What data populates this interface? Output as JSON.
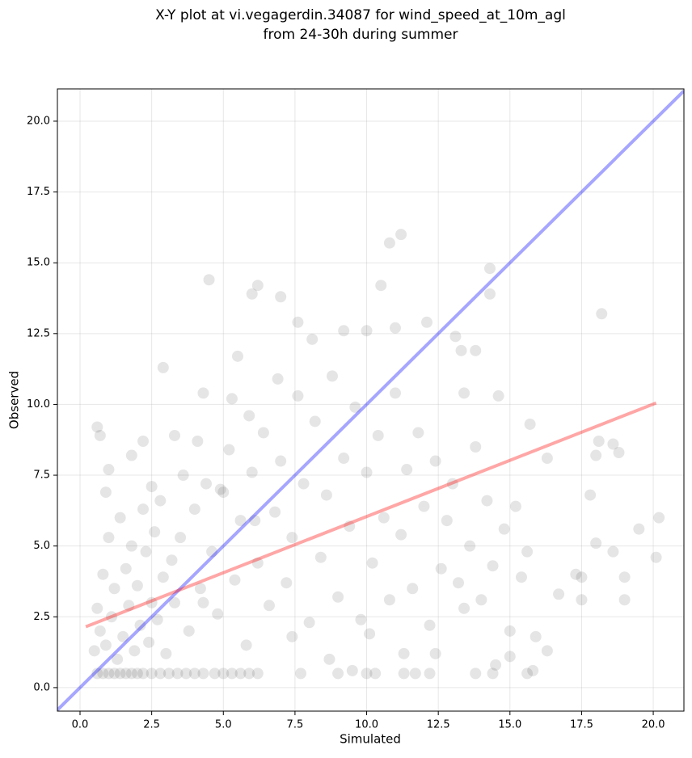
{
  "chart_data": {
    "type": "scatter",
    "title": [
      "X-Y plot at vi.vegagerdin.34087 for wind_speed_at_10m_agl",
      "from 24-30h during summer"
    ],
    "xlabel": "Simulated",
    "ylabel": "Observed",
    "xlim": [
      -0.79,
      21.07
    ],
    "ylim": [
      -0.83,
      21.14
    ],
    "xticks": [
      {
        "value": 0,
        "label": "0.0"
      },
      2.5,
      {
        "value": 5,
        "label": "5.0"
      },
      7.5,
      {
        "value": 10,
        "label": "10.0"
      },
      12.5,
      {
        "value": 15,
        "label": "15.0"
      },
      17.5,
      {
        "value": 20,
        "label": "20.0"
      }
    ],
    "yticks": [
      {
        "value": 0,
        "label": "0.0"
      },
      2.5,
      {
        "value": 5,
        "label": "5.0"
      },
      7.5,
      {
        "value": 10,
        "label": "10.0"
      },
      12.5,
      {
        "value": 15,
        "label": "15.0"
      },
      17.5,
      {
        "value": 20,
        "label": "20.0"
      }
    ],
    "grid": true,
    "color": "#000000",
    "alpha": 0.1,
    "x": [
      0.6,
      0.8,
      1.0,
      1.2,
      1.4,
      1.6,
      1.8,
      2.0,
      2.2,
      2.5,
      2.8,
      3.1,
      3.4,
      3.7,
      4.0,
      4.3,
      4.7,
      5.0,
      5.3,
      5.6,
      5.9,
      6.2,
      7.7,
      9.0,
      10.0,
      10.3,
      11.3,
      11.7,
      12.2,
      13.8,
      14.4,
      15.6,
      0.5,
      0.7,
      0.9,
      1.1,
      1.2,
      1.3,
      1.5,
      1.6,
      1.7,
      1.9,
      2.0,
      2.1,
      2.3,
      2.4,
      2.5,
      2.6,
      2.7,
      2.9,
      3.0,
      3.2,
      0.8,
      0.6,
      1.0,
      1.4,
      1.8,
      0.9,
      2.2,
      2.8,
      3.3,
      3.5,
      3.8,
      4.0,
      4.2,
      4.4,
      4.6,
      4.8,
      5.0,
      5.2,
      5.4,
      5.6,
      5.8,
      6.0,
      6.2,
      6.4,
      6.6,
      6.8,
      7.0,
      7.2,
      7.4,
      7.6,
      7.8,
      8.0,
      8.2,
      8.4,
      8.6,
      8.8,
      9.0,
      9.2,
      9.4,
      9.6,
      9.8,
      10.0,
      10.2,
      10.4,
      10.6,
      10.8,
      11.0,
      11.2,
      11.4,
      11.6,
      11.8,
      12.0,
      12.2,
      12.4,
      12.6,
      12.8,
      13.0,
      13.2,
      13.4,
      13.6,
      13.8,
      14.0,
      14.2,
      14.4,
      14.6,
      14.8,
      15.0,
      15.2,
      15.4,
      15.6,
      4.3,
      5.3,
      6.9,
      3.6,
      8.7,
      9.5,
      7.4,
      6.1,
      10.1,
      11.3,
      12.4,
      13.4,
      5.9,
      4.9,
      2.5,
      4.5,
      6.2,
      6.0,
      7.0,
      10.8,
      11.2,
      14.3,
      14.3,
      10.5,
      18.2,
      16.3,
      17.8,
      18.0,
      18.1,
      18.6,
      18.8,
      20.2,
      20.1,
      19.5,
      18.0,
      18.6,
      17.3,
      17.5,
      17.5,
      19.0,
      19.0,
      16.7,
      16.3,
      15.9,
      15.8,
      15.7,
      2.9,
      5.5,
      4.3,
      0.6,
      0.7,
      13.3,
      13.1,
      12.1,
      9.2,
      10.0,
      11.0,
      7.6,
      8.1,
      13.8,
      3.3,
      4.1,
      2.2,
      1.8,
      1.0,
      15.0,
      14.5
    ],
    "y": [
      0.5,
      0.5,
      0.5,
      0.5,
      0.5,
      0.5,
      0.5,
      0.5,
      0.5,
      0.5,
      0.5,
      0.5,
      0.5,
      0.5,
      0.5,
      0.5,
      0.5,
      0.5,
      0.5,
      0.5,
      0.5,
      0.5,
      0.5,
      0.5,
      0.5,
      0.5,
      0.5,
      0.5,
      0.5,
      0.5,
      0.5,
      0.5,
      1.3,
      2.0,
      1.5,
      2.5,
      3.5,
      1.0,
      1.8,
      4.2,
      2.9,
      1.3,
      3.6,
      2.2,
      4.8,
      1.6,
      3.0,
      5.5,
      2.4,
      3.9,
      1.2,
      4.5,
      4.0,
      2.8,
      5.3,
      6.0,
      5.0,
      6.9,
      6.3,
      6.6,
      3.0,
      5.3,
      2.0,
      6.3,
      3.5,
      7.2,
      4.8,
      2.6,
      6.9,
      8.4,
      3.8,
      5.9,
      1.5,
      7.6,
      4.4,
      9.0,
      2.9,
      6.2,
      8.0,
      3.7,
      5.3,
      10.3,
      7.2,
      2.3,
      9.4,
      4.6,
      6.8,
      11.0,
      3.2,
      8.1,
      5.7,
      9.9,
      2.4,
      7.6,
      4.4,
      8.9,
      6.0,
      3.1,
      10.4,
      5.4,
      7.7,
      3.5,
      9.0,
      6.4,
      2.2,
      8.0,
      4.2,
      5.9,
      7.2,
      3.7,
      10.4,
      5.0,
      8.5,
      3.1,
      6.6,
      4.3,
      10.3,
      5.6,
      2.0,
      6.4,
      3.9,
      4.8,
      3.0,
      10.2,
      10.9,
      7.5,
      1.0,
      0.6,
      1.8,
      5.9,
      1.9,
      1.2,
      1.2,
      2.8,
      9.6,
      7.0,
      7.1,
      14.4,
      14.2,
      13.9,
      13.8,
      15.7,
      16.0,
      14.8,
      13.9,
      14.2,
      13.2,
      8.1,
      6.8,
      8.2,
      8.7,
      8.6,
      8.3,
      6.0,
      4.6,
      5.6,
      5.1,
      4.8,
      4.0,
      3.9,
      3.1,
      3.9,
      3.1,
      3.3,
      1.3,
      1.8,
      0.6,
      9.3,
      11.3,
      11.7,
      10.4,
      9.2,
      8.9,
      11.9,
      12.4,
      12.9,
      12.6,
      12.6,
      12.7,
      12.9,
      12.3,
      11.9,
      8.9,
      8.7,
      8.7,
      8.2,
      7.7,
      1.1,
      0.8
    ],
    "lines": [
      {
        "color": "#0000ff",
        "alpha": 0.35,
        "x": [
          -0.79,
          21.07
        ],
        "y": [
          -0.79,
          21.07
        ]
      },
      {
        "color": "#ff0000",
        "alpha": 0.35,
        "x": [
          0.2,
          20.1
        ],
        "y": [
          2.15,
          10.05
        ]
      }
    ]
  }
}
